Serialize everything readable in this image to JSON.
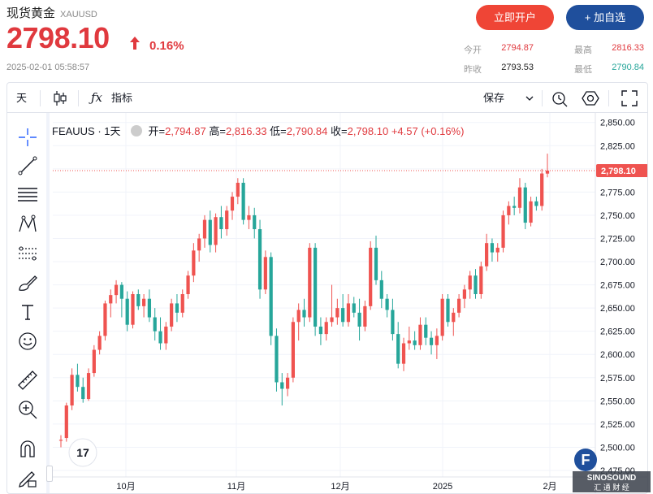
{
  "header": {
    "title": "现货黄金",
    "symbol": "XAUUSD",
    "price": "2798.10",
    "change_pct": "0.16%",
    "timestamp": "2025-02-01 05:58:57",
    "open_account_label": "立即开户",
    "add_watch_label": "+ 加自选"
  },
  "quotes": {
    "open": {
      "label": "今开",
      "value": "2794.87"
    },
    "high": {
      "label": "最高",
      "value": "2816.33"
    },
    "prev_close": {
      "label": "昨收",
      "value": "2793.53"
    },
    "low": {
      "label": "最低",
      "value": "2790.84"
    }
  },
  "toolbar": {
    "interval": "天",
    "indicators": "指标",
    "save": "保存"
  },
  "legend": {
    "symbol": "FEAUUS · 1天",
    "open_k": "开=",
    "open_v": "2,794.87",
    "high_k": "高=",
    "high_v": "2,816.33",
    "low_k": "低=",
    "low_v": "2,790.84",
    "close_k": "收=",
    "close_v": "2,798.10",
    "change": "+4.57 (+0.16%)"
  },
  "colors": {
    "up": "#ef5350",
    "down": "#26a69a",
    "accent": "#e0393e",
    "brand_blue": "#1f4f9c"
  },
  "chart_data": {
    "type": "candlestick",
    "y_ticks": [
      2475,
      2500,
      2525,
      2550,
      2575,
      2600,
      2625,
      2650,
      2675,
      2700,
      2725,
      2750,
      2775,
      2800,
      2825,
      2850
    ],
    "ylim": [
      2468,
      2855
    ],
    "x_labels": [
      "10月",
      "11月",
      "12月",
      "2025",
      "2月"
    ],
    "last_price": 2798.1,
    "last_price_label": "2,798.10",
    "candles": [
      {
        "o": 2507,
        "h": 2513,
        "l": 2500,
        "c": 2508
      },
      {
        "o": 2510,
        "h": 2548,
        "l": 2506,
        "c": 2545
      },
      {
        "o": 2545,
        "h": 2585,
        "l": 2540,
        "c": 2578
      },
      {
        "o": 2578,
        "h": 2590,
        "l": 2560,
        "c": 2565
      },
      {
        "o": 2565,
        "h": 2575,
        "l": 2548,
        "c": 2552
      },
      {
        "o": 2552,
        "h": 2585,
        "l": 2550,
        "c": 2580
      },
      {
        "o": 2580,
        "h": 2610,
        "l": 2576,
        "c": 2605
      },
      {
        "o": 2605,
        "h": 2625,
        "l": 2600,
        "c": 2620
      },
      {
        "o": 2620,
        "h": 2658,
        "l": 2615,
        "c": 2655
      },
      {
        "o": 2655,
        "h": 2670,
        "l": 2640,
        "c": 2664
      },
      {
        "o": 2664,
        "h": 2680,
        "l": 2655,
        "c": 2675
      },
      {
        "o": 2675,
        "h": 2678,
        "l": 2640,
        "c": 2660
      },
      {
        "o": 2660,
        "h": 2668,
        "l": 2625,
        "c": 2632
      },
      {
        "o": 2632,
        "h": 2668,
        "l": 2628,
        "c": 2665
      },
      {
        "o": 2665,
        "h": 2670,
        "l": 2648,
        "c": 2652
      },
      {
        "o": 2652,
        "h": 2665,
        "l": 2640,
        "c": 2660
      },
      {
        "o": 2660,
        "h": 2670,
        "l": 2635,
        "c": 2640
      },
      {
        "o": 2640,
        "h": 2650,
        "l": 2615,
        "c": 2625
      },
      {
        "o": 2625,
        "h": 2640,
        "l": 2605,
        "c": 2612
      },
      {
        "o": 2612,
        "h": 2635,
        "l": 2605,
        "c": 2630
      },
      {
        "o": 2630,
        "h": 2660,
        "l": 2625,
        "c": 2655
      },
      {
        "o": 2655,
        "h": 2665,
        "l": 2635,
        "c": 2645
      },
      {
        "o": 2645,
        "h": 2670,
        "l": 2640,
        "c": 2665
      },
      {
        "o": 2665,
        "h": 2690,
        "l": 2660,
        "c": 2685
      },
      {
        "o": 2685,
        "h": 2720,
        "l": 2678,
        "c": 2712
      },
      {
        "o": 2712,
        "h": 2730,
        "l": 2700,
        "c": 2725
      },
      {
        "o": 2725,
        "h": 2750,
        "l": 2715,
        "c": 2745
      },
      {
        "o": 2745,
        "h": 2755,
        "l": 2710,
        "c": 2718
      },
      {
        "o": 2718,
        "h": 2752,
        "l": 2710,
        "c": 2748
      },
      {
        "o": 2748,
        "h": 2760,
        "l": 2725,
        "c": 2735
      },
      {
        "o": 2735,
        "h": 2760,
        "l": 2728,
        "c": 2755
      },
      {
        "o": 2755,
        "h": 2775,
        "l": 2745,
        "c": 2770
      },
      {
        "o": 2770,
        "h": 2790,
        "l": 2762,
        "c": 2785
      },
      {
        "o": 2785,
        "h": 2790,
        "l": 2740,
        "c": 2745
      },
      {
        "o": 2745,
        "h": 2760,
        "l": 2735,
        "c": 2750
      },
      {
        "o": 2750,
        "h": 2758,
        "l": 2725,
        "c": 2735
      },
      {
        "o": 2735,
        "h": 2745,
        "l": 2660,
        "c": 2670
      },
      {
        "o": 2670,
        "h": 2712,
        "l": 2665,
        "c": 2705
      },
      {
        "o": 2705,
        "h": 2710,
        "l": 2610,
        "c": 2620
      },
      {
        "o": 2620,
        "h": 2628,
        "l": 2560,
        "c": 2570
      },
      {
        "o": 2570,
        "h": 2580,
        "l": 2545,
        "c": 2563
      },
      {
        "o": 2563,
        "h": 2580,
        "l": 2555,
        "c": 2575
      },
      {
        "o": 2575,
        "h": 2640,
        "l": 2570,
        "c": 2635
      },
      {
        "o": 2635,
        "h": 2655,
        "l": 2615,
        "c": 2648
      },
      {
        "o": 2648,
        "h": 2660,
        "l": 2630,
        "c": 2640
      },
      {
        "o": 2640,
        "h": 2720,
        "l": 2635,
        "c": 2715
      },
      {
        "o": 2715,
        "h": 2720,
        "l": 2620,
        "c": 2630
      },
      {
        "o": 2630,
        "h": 2640,
        "l": 2610,
        "c": 2622
      },
      {
        "o": 2622,
        "h": 2640,
        "l": 2615,
        "c": 2635
      },
      {
        "o": 2635,
        "h": 2675,
        "l": 2630,
        "c": 2640
      },
      {
        "o": 2640,
        "h": 2660,
        "l": 2632,
        "c": 2650
      },
      {
        "o": 2650,
        "h": 2665,
        "l": 2630,
        "c": 2635
      },
      {
        "o": 2635,
        "h": 2665,
        "l": 2630,
        "c": 2655
      },
      {
        "o": 2655,
        "h": 2662,
        "l": 2640,
        "c": 2645
      },
      {
        "o": 2645,
        "h": 2660,
        "l": 2615,
        "c": 2630
      },
      {
        "o": 2630,
        "h": 2658,
        "l": 2625,
        "c": 2652
      },
      {
        "o": 2652,
        "h": 2722,
        "l": 2648,
        "c": 2715
      },
      {
        "o": 2715,
        "h": 2728,
        "l": 2675,
        "c": 2680
      },
      {
        "o": 2680,
        "h": 2690,
        "l": 2650,
        "c": 2660
      },
      {
        "o": 2660,
        "h": 2665,
        "l": 2640,
        "c": 2648
      },
      {
        "o": 2648,
        "h": 2660,
        "l": 2615,
        "c": 2622
      },
      {
        "o": 2622,
        "h": 2635,
        "l": 2585,
        "c": 2590
      },
      {
        "o": 2590,
        "h": 2618,
        "l": 2582,
        "c": 2612
      },
      {
        "o": 2612,
        "h": 2630,
        "l": 2605,
        "c": 2615
      },
      {
        "o": 2615,
        "h": 2625,
        "l": 2605,
        "c": 2610
      },
      {
        "o": 2610,
        "h": 2640,
        "l": 2605,
        "c": 2632
      },
      {
        "o": 2632,
        "h": 2640,
        "l": 2610,
        "c": 2618
      },
      {
        "o": 2618,
        "h": 2625,
        "l": 2600,
        "c": 2610
      },
      {
        "o": 2610,
        "h": 2628,
        "l": 2595,
        "c": 2620
      },
      {
        "o": 2620,
        "h": 2665,
        "l": 2615,
        "c": 2660
      },
      {
        "o": 2660,
        "h": 2665,
        "l": 2630,
        "c": 2635
      },
      {
        "o": 2635,
        "h": 2650,
        "l": 2620,
        "c": 2645
      },
      {
        "o": 2645,
        "h": 2665,
        "l": 2640,
        "c": 2660
      },
      {
        "o": 2660,
        "h": 2675,
        "l": 2650,
        "c": 2670
      },
      {
        "o": 2670,
        "h": 2690,
        "l": 2660,
        "c": 2685
      },
      {
        "o": 2685,
        "h": 2692,
        "l": 2660,
        "c": 2665
      },
      {
        "o": 2665,
        "h": 2700,
        "l": 2660,
        "c": 2695
      },
      {
        "o": 2695,
        "h": 2730,
        "l": 2690,
        "c": 2720
      },
      {
        "o": 2720,
        "h": 2725,
        "l": 2700,
        "c": 2710
      },
      {
        "o": 2710,
        "h": 2720,
        "l": 2700,
        "c": 2715
      },
      {
        "o": 2715,
        "h": 2755,
        "l": 2710,
        "c": 2750
      },
      {
        "o": 2750,
        "h": 2765,
        "l": 2740,
        "c": 2760
      },
      {
        "o": 2760,
        "h": 2770,
        "l": 2750,
        "c": 2758
      },
      {
        "o": 2758,
        "h": 2790,
        "l": 2752,
        "c": 2780
      },
      {
        "o": 2780,
        "h": 2785,
        "l": 2735,
        "c": 2742
      },
      {
        "o": 2742,
        "h": 2770,
        "l": 2738,
        "c": 2765
      },
      {
        "o": 2765,
        "h": 2770,
        "l": 2755,
        "c": 2760
      },
      {
        "o": 2760,
        "h": 2800,
        "l": 2755,
        "c": 2795
      },
      {
        "o": 2794.87,
        "h": 2816.33,
        "l": 2790.84,
        "c": 2798.1
      }
    ]
  }
}
